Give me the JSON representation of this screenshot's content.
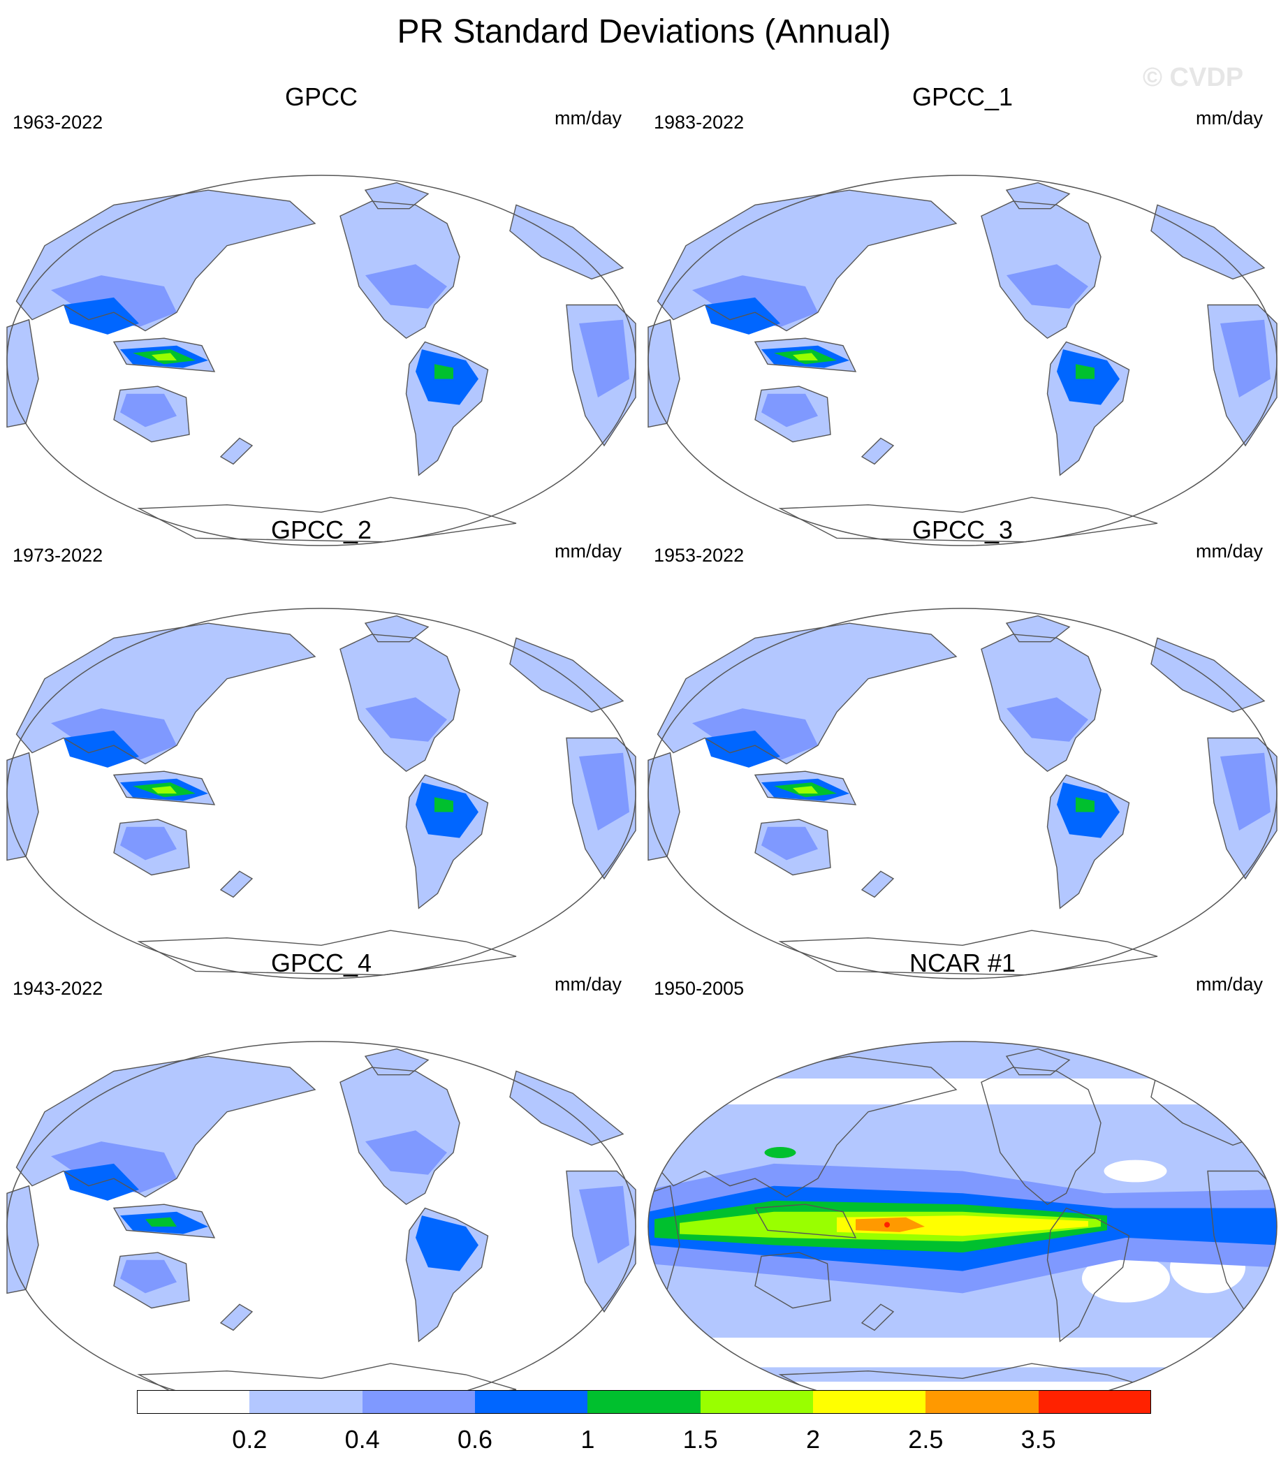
{
  "title": "PR Standard Deviations (Annual)",
  "watermark": "© CVDP",
  "panels": [
    {
      "name": "GPCC",
      "period": "1963-2022",
      "units": "mm/day",
      "field": "observed",
      "intensity": 1.0
    },
    {
      "name": "GPCC_1",
      "period": "1983-2022",
      "units": "mm/day",
      "field": "observed",
      "intensity": 1.0
    },
    {
      "name": "GPCC_2",
      "period": "1973-2022",
      "units": "mm/day",
      "field": "observed",
      "intensity": 0.95
    },
    {
      "name": "GPCC_3",
      "period": "1953-2022",
      "units": "mm/day",
      "field": "observed",
      "intensity": 0.9
    },
    {
      "name": "GPCC_4",
      "period": "1943-2022",
      "units": "mm/day",
      "field": "observed",
      "intensity": 0.85
    },
    {
      "name": "NCAR #1",
      "period": "1950-2005",
      "units": "mm/day",
      "field": "model",
      "intensity": 1.0
    }
  ],
  "colorbar": {
    "labels": [
      "0.2",
      "0.4",
      "0.6",
      "1",
      "1.5",
      "2",
      "2.5",
      "3.5"
    ],
    "colors": [
      "#ffffff",
      "#b3c7ff",
      "#7f99ff",
      "#0066ff",
      "#00c02e",
      "#99ff00",
      "#ffff00",
      "#ff9900",
      "#ff2200"
    ]
  },
  "colors": {
    "ocean": "#ffffff",
    "coastline": "#555555",
    "level1": "#b3c7ff",
    "level2": "#7f99ff",
    "level3": "#0066ff",
    "level4": "#00c02e",
    "level5": "#99ff00",
    "level6": "#ffff00",
    "level7": "#ff9900",
    "level8": "#ff2200"
  }
}
